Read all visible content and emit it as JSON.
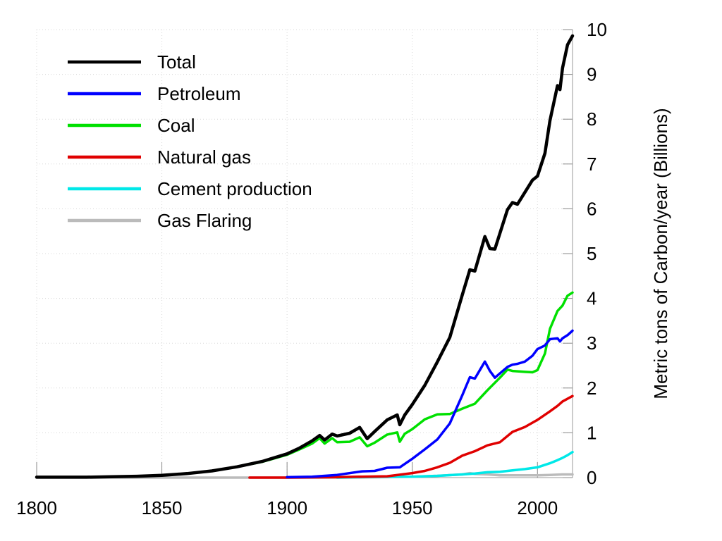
{
  "chart_data": {
    "type": "line",
    "title": "",
    "xlabel": "",
    "ylabel": "Metric tons of Carbon/year (Billions)",
    "xlim": [
      1800,
      2014
    ],
    "ylim": [
      0,
      10
    ],
    "x_ticks": [
      "1800",
      "1850",
      "1900",
      "1950",
      "2000"
    ],
    "y_ticks": [
      "0",
      "1",
      "2",
      "3",
      "4",
      "5",
      "6",
      "7",
      "8",
      "9",
      "10"
    ],
    "grid": true,
    "legend_position": "top-left",
    "series": [
      {
        "name": "Total",
        "color": "#000000",
        "points": [
          [
            1800,
            0.01
          ],
          [
            1810,
            0.01
          ],
          [
            1820,
            0.01
          ],
          [
            1830,
            0.02
          ],
          [
            1840,
            0.03
          ],
          [
            1850,
            0.05
          ],
          [
            1860,
            0.09
          ],
          [
            1870,
            0.15
          ],
          [
            1880,
            0.24
          ],
          [
            1890,
            0.36
          ],
          [
            1900,
            0.53
          ],
          [
            1905,
            0.66
          ],
          [
            1910,
            0.82
          ],
          [
            1913,
            0.94
          ],
          [
            1915,
            0.84
          ],
          [
            1918,
            0.97
          ],
          [
            1920,
            0.93
          ],
          [
            1925,
            0.99
          ],
          [
            1929,
            1.12
          ],
          [
            1932,
            0.87
          ],
          [
            1935,
            1.03
          ],
          [
            1940,
            1.29
          ],
          [
            1944,
            1.4
          ],
          [
            1945,
            1.18
          ],
          [
            1947,
            1.4
          ],
          [
            1950,
            1.63
          ],
          [
            1955,
            2.06
          ],
          [
            1960,
            2.58
          ],
          [
            1965,
            3.13
          ],
          [
            1970,
            4.08
          ],
          [
            1973,
            4.64
          ],
          [
            1975,
            4.61
          ],
          [
            1979,
            5.38
          ],
          [
            1981,
            5.11
          ],
          [
            1983,
            5.1
          ],
          [
            1988,
            5.98
          ],
          [
            1990,
            6.14
          ],
          [
            1992,
            6.1
          ],
          [
            1995,
            6.37
          ],
          [
            1998,
            6.64
          ],
          [
            2000,
            6.73
          ],
          [
            2003,
            7.24
          ],
          [
            2005,
            7.97
          ],
          [
            2008,
            8.75
          ],
          [
            2009,
            8.66
          ],
          [
            2010,
            9.14
          ],
          [
            2012,
            9.66
          ],
          [
            2014,
            9.86
          ]
        ]
      },
      {
        "name": "Petroleum",
        "color": "#0000ff",
        "points": [
          [
            1900,
            0.01
          ],
          [
            1910,
            0.02
          ],
          [
            1920,
            0.06
          ],
          [
            1930,
            0.14
          ],
          [
            1935,
            0.15
          ],
          [
            1940,
            0.22
          ],
          [
            1945,
            0.23
          ],
          [
            1950,
            0.42
          ],
          [
            1955,
            0.63
          ],
          [
            1960,
            0.85
          ],
          [
            1965,
            1.21
          ],
          [
            1970,
            1.84
          ],
          [
            1973,
            2.24
          ],
          [
            1975,
            2.21
          ],
          [
            1979,
            2.59
          ],
          [
            1981,
            2.38
          ],
          [
            1983,
            2.23
          ],
          [
            1988,
            2.47
          ],
          [
            1990,
            2.52
          ],
          [
            1992,
            2.54
          ],
          [
            1995,
            2.59
          ],
          [
            1998,
            2.72
          ],
          [
            2000,
            2.87
          ],
          [
            2003,
            2.95
          ],
          [
            2005,
            3.09
          ],
          [
            2008,
            3.11
          ],
          [
            2009,
            3.04
          ],
          [
            2010,
            3.11
          ],
          [
            2012,
            3.18
          ],
          [
            2014,
            3.28
          ]
        ]
      },
      {
        "name": "Coal",
        "color": "#00e000",
        "points": [
          [
            1800,
            0.01
          ],
          [
            1810,
            0.01
          ],
          [
            1820,
            0.01
          ],
          [
            1830,
            0.02
          ],
          [
            1840,
            0.03
          ],
          [
            1850,
            0.05
          ],
          [
            1860,
            0.09
          ],
          [
            1870,
            0.15
          ],
          [
            1880,
            0.24
          ],
          [
            1890,
            0.35
          ],
          [
            1900,
            0.51
          ],
          [
            1905,
            0.63
          ],
          [
            1910,
            0.76
          ],
          [
            1913,
            0.88
          ],
          [
            1915,
            0.76
          ],
          [
            1918,
            0.88
          ],
          [
            1920,
            0.79
          ],
          [
            1925,
            0.8
          ],
          [
            1929,
            0.9
          ],
          [
            1932,
            0.7
          ],
          [
            1935,
            0.78
          ],
          [
            1940,
            0.96
          ],
          [
            1944,
            1.01
          ],
          [
            1945,
            0.8
          ],
          [
            1947,
            0.98
          ],
          [
            1950,
            1.08
          ],
          [
            1955,
            1.3
          ],
          [
            1960,
            1.41
          ],
          [
            1965,
            1.42
          ],
          [
            1970,
            1.54
          ],
          [
            1975,
            1.65
          ],
          [
            1980,
            1.95
          ],
          [
            1985,
            2.23
          ],
          [
            1988,
            2.41
          ],
          [
            1990,
            2.38
          ],
          [
            1995,
            2.36
          ],
          [
            1998,
            2.35
          ],
          [
            2000,
            2.4
          ],
          [
            2003,
            2.77
          ],
          [
            2005,
            3.32
          ],
          [
            2008,
            3.72
          ],
          [
            2010,
            3.84
          ],
          [
            2012,
            4.06
          ],
          [
            2014,
            4.13
          ]
        ]
      },
      {
        "name": "Natural gas",
        "color": "#e00000",
        "points": [
          [
            1885,
            0.0
          ],
          [
            1900,
            0.0
          ],
          [
            1920,
            0.01
          ],
          [
            1930,
            0.02
          ],
          [
            1940,
            0.03
          ],
          [
            1950,
            0.1
          ],
          [
            1955,
            0.15
          ],
          [
            1960,
            0.23
          ],
          [
            1965,
            0.33
          ],
          [
            1970,
            0.49
          ],
          [
            1975,
            0.59
          ],
          [
            1980,
            0.72
          ],
          [
            1985,
            0.79
          ],
          [
            1990,
            1.02
          ],
          [
            1995,
            1.13
          ],
          [
            2000,
            1.29
          ],
          [
            2005,
            1.48
          ],
          [
            2008,
            1.6
          ],
          [
            2010,
            1.7
          ],
          [
            2012,
            1.76
          ],
          [
            2014,
            1.82
          ]
        ]
      },
      {
        "name": "Cement production",
        "color": "#00e8e8",
        "points": [
          [
            1920,
            0.0
          ],
          [
            1930,
            0.01
          ],
          [
            1940,
            0.02
          ],
          [
            1950,
            0.02
          ],
          [
            1960,
            0.04
          ],
          [
            1970,
            0.07
          ],
          [
            1975,
            0.09
          ],
          [
            1980,
            0.12
          ],
          [
            1985,
            0.13
          ],
          [
            1990,
            0.16
          ],
          [
            1995,
            0.19
          ],
          [
            2000,
            0.23
          ],
          [
            2005,
            0.32
          ],
          [
            2008,
            0.39
          ],
          [
            2010,
            0.44
          ],
          [
            2012,
            0.5
          ],
          [
            2014,
            0.57
          ]
        ]
      },
      {
        "name": "Gas Flaring",
        "color": "#bbbbbb",
        "points": [
          [
            1800,
            0.0
          ],
          [
            1900,
            0.0
          ],
          [
            1920,
            0.0
          ],
          [
            1940,
            0.01
          ],
          [
            1950,
            0.02
          ],
          [
            1960,
            0.04
          ],
          [
            1970,
            0.07
          ],
          [
            1973,
            0.1
          ],
          [
            1975,
            0.08
          ],
          [
            1980,
            0.07
          ],
          [
            1985,
            0.05
          ],
          [
            1990,
            0.05
          ],
          [
            1995,
            0.05
          ],
          [
            2000,
            0.05
          ],
          [
            2005,
            0.06
          ],
          [
            2010,
            0.07
          ],
          [
            2014,
            0.07
          ]
        ]
      }
    ]
  }
}
